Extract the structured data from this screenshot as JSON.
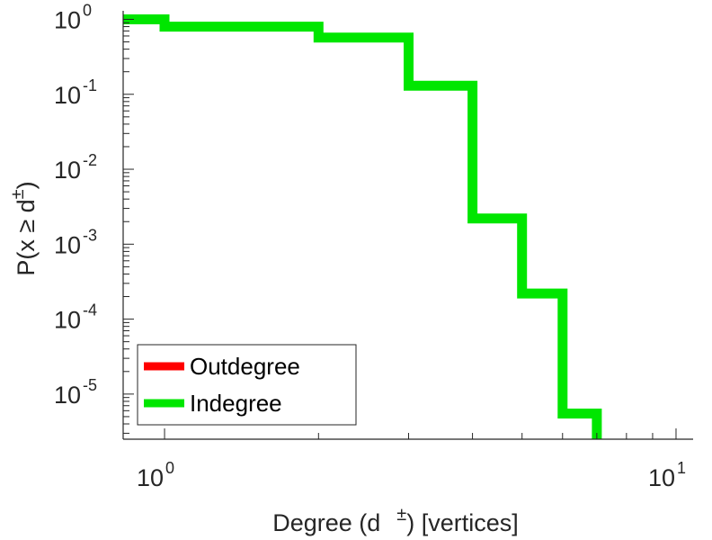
{
  "chart_data": {
    "type": "line",
    "step": true,
    "xscale": "log",
    "yscale": "log",
    "xlim": [
      0.83,
      10.8
    ],
    "ylim": [
      2.5e-06,
      1.3
    ],
    "xlabel_text": "Degree (d",
    "xlabel_sup": "±",
    "xlabel_tail": ") [vertices]",
    "ylabel_text": "P(x ≥ d",
    "ylabel_sup": "±",
    "ylabel_tail": ")",
    "x_ticks": [
      {
        "value": 1,
        "base": "10",
        "exp": "0"
      },
      {
        "value": 10,
        "base": "10",
        "exp": "1"
      }
    ],
    "y_ticks": [
      {
        "value": 1,
        "base": "10",
        "exp": "0"
      },
      {
        "value": 0.1,
        "base": "10",
        "exp": "-1"
      },
      {
        "value": 0.01,
        "base": "10",
        "exp": "-2"
      },
      {
        "value": 0.001,
        "base": "10",
        "exp": "-3"
      },
      {
        "value": 0.0001,
        "base": "10",
        "exp": "-4"
      },
      {
        "value": 1e-05,
        "base": "10",
        "exp": "-5"
      }
    ],
    "grid": false,
    "legend": "bottom-left",
    "series": [
      {
        "name": "Outdegree",
        "color": "#ff0000",
        "x": [],
        "y": []
      },
      {
        "name": "Indegree",
        "color": "#00e600",
        "x": [
          0.83,
          1,
          2,
          3,
          4,
          5,
          6,
          7
        ],
        "y": [
          1.0,
          0.8,
          0.57,
          0.13,
          0.0022,
          0.00022,
          5.5e-06,
          2.5e-06
        ]
      }
    ]
  }
}
